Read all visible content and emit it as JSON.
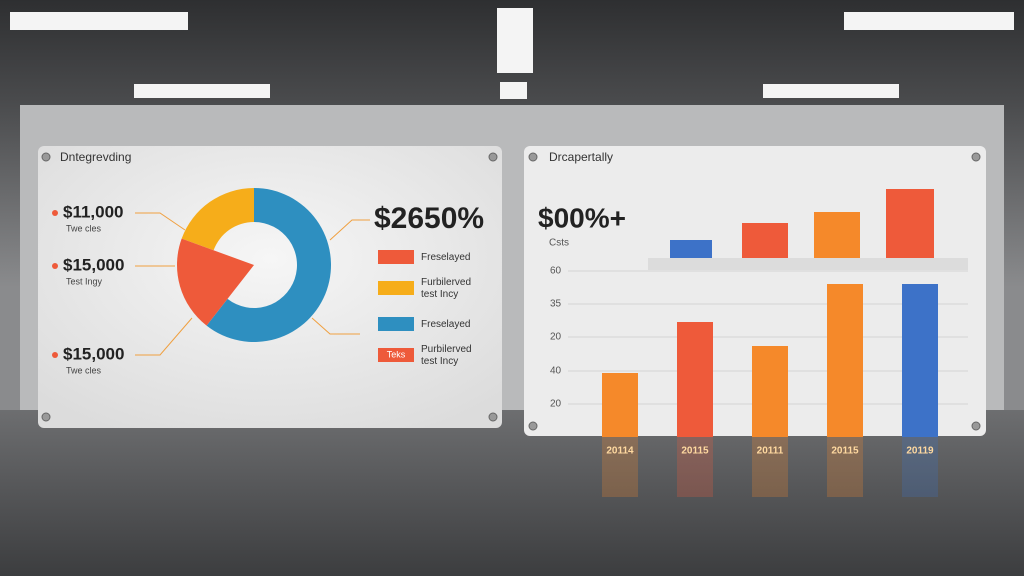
{
  "left_panel": {
    "title": "Dntegrevding",
    "headline": "$2650%",
    "callouts": [
      {
        "amount": "$11,000",
        "caption": "Twe cles"
      },
      {
        "amount": "$15,000",
        "caption": "Test Ingy"
      },
      {
        "amount": "$15,000",
        "caption": "Twe cles"
      }
    ],
    "legend": [
      {
        "label": "Freselayed"
      },
      {
        "label": "Furbilerved test Incy"
      },
      {
        "label": "Freselayed"
      },
      {
        "swatch_text": "Teks",
        "label": "Purbilerved test Incy"
      }
    ]
  },
  "right_panel": {
    "title": "Drcapertally",
    "headline": "$00%+",
    "subtitle": "Csts",
    "axis_labels": [
      "60",
      "35",
      "20",
      "40",
      "20"
    ],
    "years": [
      "20114",
      "20115",
      "20111",
      "20115",
      "20119"
    ]
  }
}
